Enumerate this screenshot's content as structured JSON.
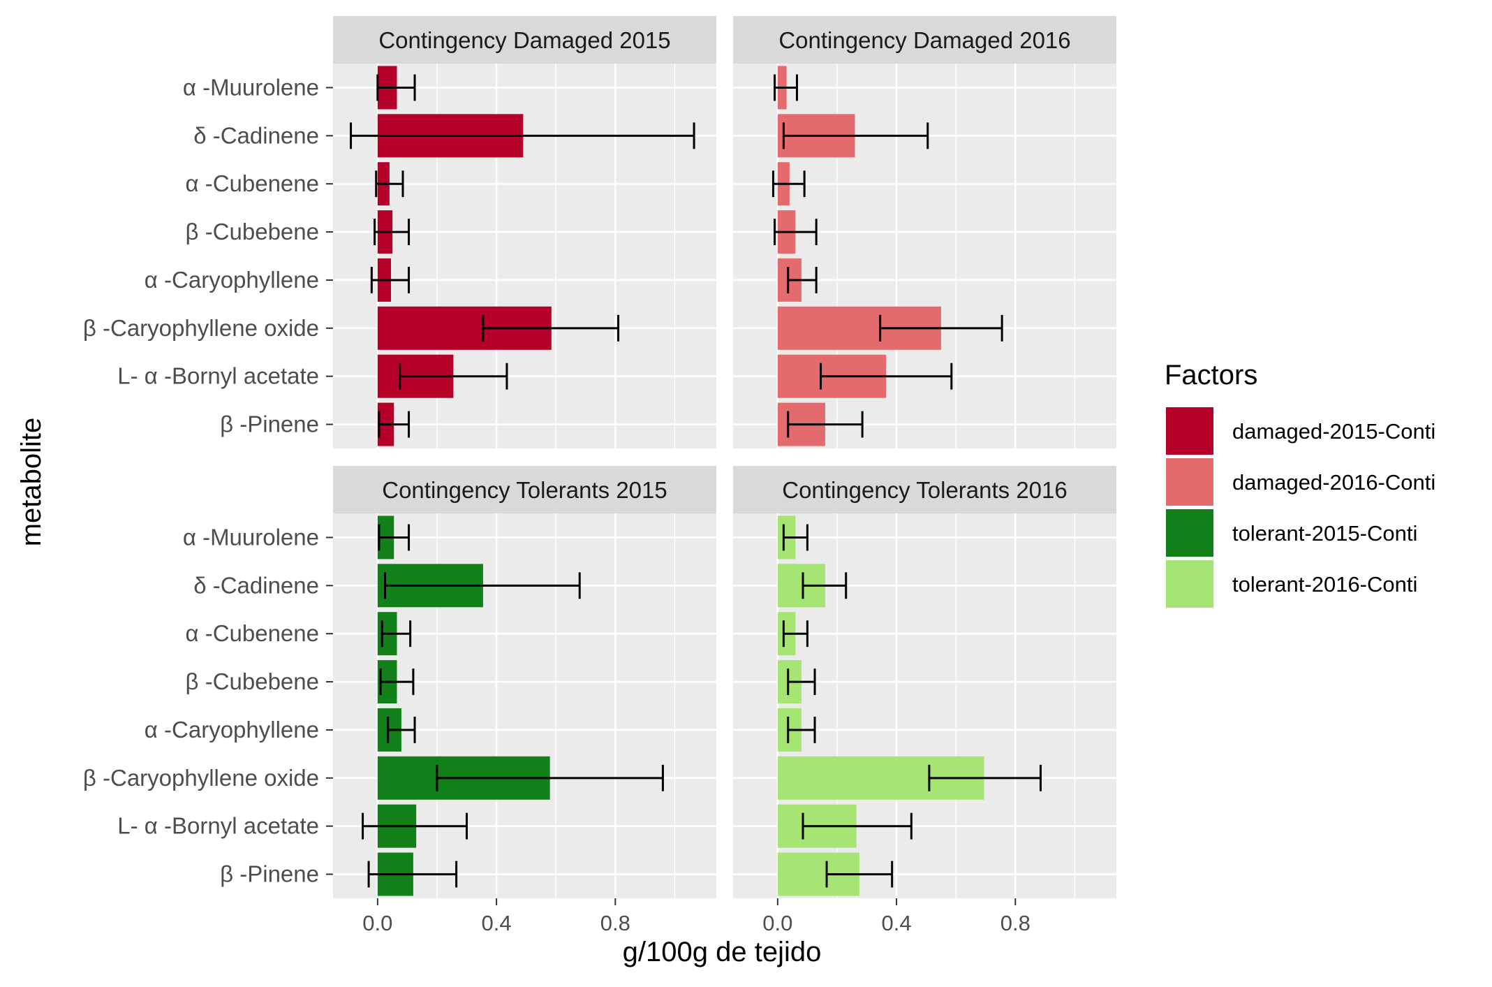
{
  "chart_data": {
    "type": "bar",
    "orientation": "horizontal",
    "facet_layout": "2x2",
    "xlabel": "g/100g de tejido",
    "ylabel": "metabolite",
    "xlim": [
      -0.15,
      1.14
    ],
    "x_ticks": [
      "0.0",
      "0.4",
      "0.8"
    ],
    "grid": true,
    "categories": [
      "α -Muurolene",
      "δ -Cadinene",
      "α -Cubenene",
      "β -Cubebene",
      "α -Caryophyllene",
      "β -Caryophyllene oxide",
      "L- α -Bornyl acetate",
      "β -Pinene"
    ],
    "legend": {
      "title": "Factors",
      "position": "right",
      "entries": [
        {
          "label": "damaged-2015-Conti",
          "color": "#B5002A"
        },
        {
          "label": "damaged-2016-Conti",
          "color": "#E36B6E"
        },
        {
          "label": "tolerant-2015-Conti",
          "color": "#118018"
        },
        {
          "label": "tolerant-2016-Conti",
          "color": "#A6E574"
        }
      ]
    },
    "panels": [
      {
        "title": "Contingency Damaged 2015",
        "color": "#B5002A",
        "values": [
          0.065,
          0.49,
          0.04,
          0.05,
          0.045,
          0.585,
          0.255,
          0.055
        ],
        "err_low": [
          0.0,
          -0.09,
          -0.005,
          -0.01,
          -0.02,
          0.355,
          0.075,
          0.005
        ],
        "err_high": [
          0.125,
          1.065,
          0.085,
          0.105,
          0.105,
          0.81,
          0.435,
          0.105
        ]
      },
      {
        "title": "Contingency Damaged 2016",
        "color": "#E36B6E",
        "values": [
          0.03,
          0.26,
          0.04,
          0.06,
          0.08,
          0.55,
          0.365,
          0.16
        ],
        "err_low": [
          -0.01,
          0.02,
          -0.015,
          -0.01,
          0.035,
          0.345,
          0.145,
          0.035
        ],
        "err_high": [
          0.065,
          0.505,
          0.09,
          0.13,
          0.13,
          0.755,
          0.585,
          0.285
        ]
      },
      {
        "title": "Contingency Tolerants 2015",
        "color": "#118018",
        "values": [
          0.055,
          0.355,
          0.065,
          0.065,
          0.08,
          0.58,
          0.13,
          0.12
        ],
        "err_low": [
          0.005,
          0.025,
          0.015,
          0.01,
          0.035,
          0.2,
          -0.05,
          -0.03
        ],
        "err_high": [
          0.105,
          0.68,
          0.11,
          0.12,
          0.125,
          0.96,
          0.3,
          0.265
        ]
      },
      {
        "title": "Contingency Tolerants 2016",
        "color": "#A6E574",
        "values": [
          0.06,
          0.16,
          0.06,
          0.08,
          0.08,
          0.695,
          0.265,
          0.275
        ],
        "err_low": [
          0.02,
          0.085,
          0.02,
          0.035,
          0.035,
          0.51,
          0.085,
          0.165
        ],
        "err_high": [
          0.1,
          0.23,
          0.1,
          0.125,
          0.125,
          0.885,
          0.45,
          0.385
        ]
      }
    ]
  }
}
